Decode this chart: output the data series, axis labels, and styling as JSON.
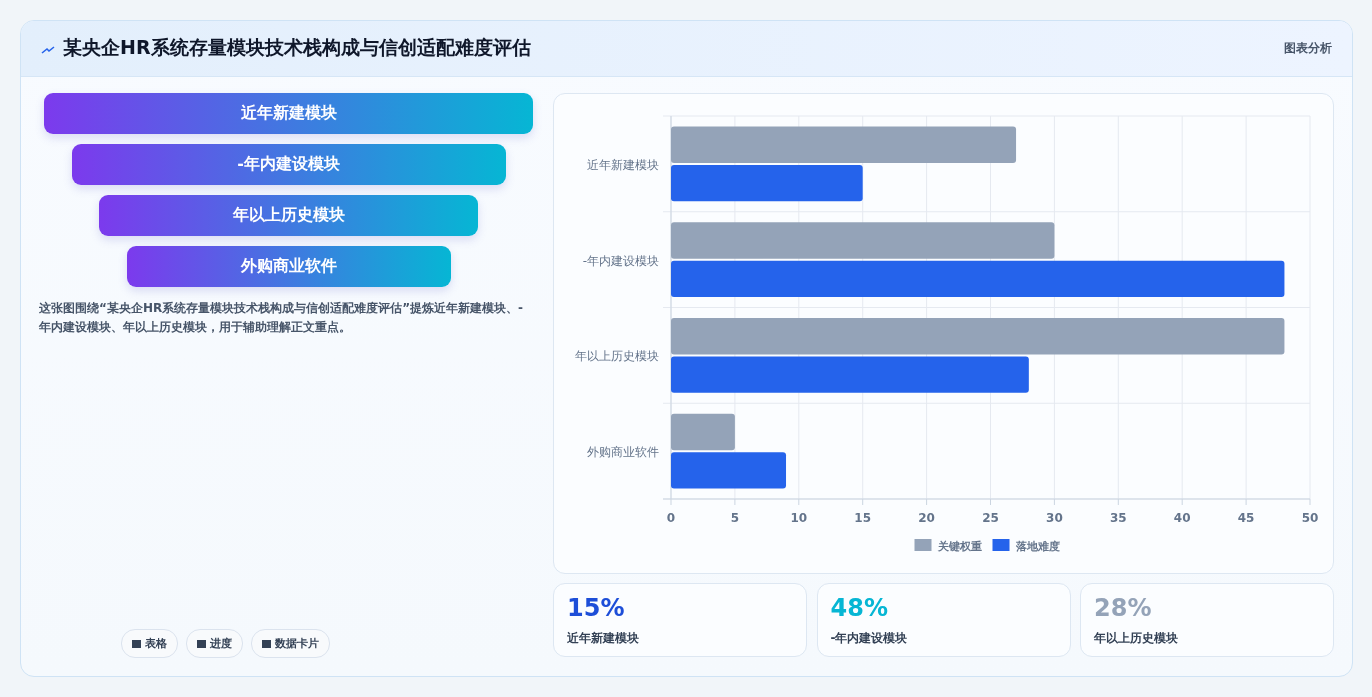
{
  "chart_data": [
    {
      "type": "other",
      "title": "某央企HR系统存量模块技术栈构成与信创适配难度评估",
      "categories": [
        "近年新建模块",
        "-年内建设模块",
        "年以上历史模块",
        "外购商业软件"
      ],
      "colors": [
        "#7c3aed",
        "#06b6d4"
      ],
      "annotations": [
        "图表分析",
        "这张图围绕“某央企HR系统存量模块技术栈构成与信创适配难度评估”提炼近年新建模块、-年内建设模块、年以上历史模块，用于辅助理解正文重点。",
        "表格",
        "进度",
        "数据卡片"
      ]
    },
    {
      "type": "bar",
      "orientation": "horizontal",
      "categories": [
        "近年新建模块",
        "-年内建设模块",
        "年以上历史模块",
        "外购商业软件"
      ],
      "series": [
        {
          "name": "关键权重",
          "color": "#94a3b8",
          "values": [
            27,
            30,
            48,
            5
          ]
        },
        {
          "name": "落地难度",
          "color": "#2563eb",
          "values": [
            15,
            48,
            28,
            9
          ]
        }
      ],
      "xlim": [
        0,
        50
      ],
      "xticks": [
        0,
        5,
        10,
        15,
        20,
        25,
        30,
        35,
        40,
        45,
        50
      ],
      "grid": true,
      "legend": "bottom"
    },
    {
      "type": "other",
      "annotations": [
        "15%",
        "近年新建模块",
        "48%",
        "-年内建设模块",
        "28%",
        "年以上历史模块"
      ]
    }
  ]
}
